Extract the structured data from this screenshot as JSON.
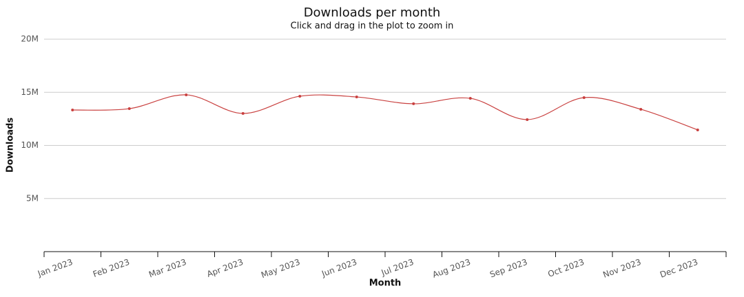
{
  "chart_data": {
    "type": "line",
    "title": "Downloads per month",
    "subtitle": "Click and drag in the plot to zoom in",
    "x_label": "Month",
    "y_label": "Downloads",
    "categories": [
      "Jan 2023",
      "Feb 2023",
      "Mar 2023",
      "Apr 2023",
      "May 2023",
      "Jun 2023",
      "Jul 2023",
      "Aug 2023",
      "Sep 2023",
      "Oct 2023",
      "Nov 2023",
      "Dec 2023"
    ],
    "series": [
      {
        "name": "Downloads",
        "color": "#c9403f",
        "values": [
          13330000,
          13460000,
          14760000,
          13010000,
          14630000,
          14560000,
          13920000,
          14430000,
          12430000,
          14500000,
          13400000,
          11460000
        ]
      }
    ],
    "ylim": [
      0,
      20000000
    ],
    "yticks": [
      {
        "value": 5000000,
        "label": "5M"
      },
      {
        "value": 10000000,
        "label": "10M"
      },
      {
        "value": 15000000,
        "label": "15M"
      },
      {
        "value": 20000000,
        "label": "20M"
      }
    ],
    "grid": true,
    "smooth": true
  }
}
